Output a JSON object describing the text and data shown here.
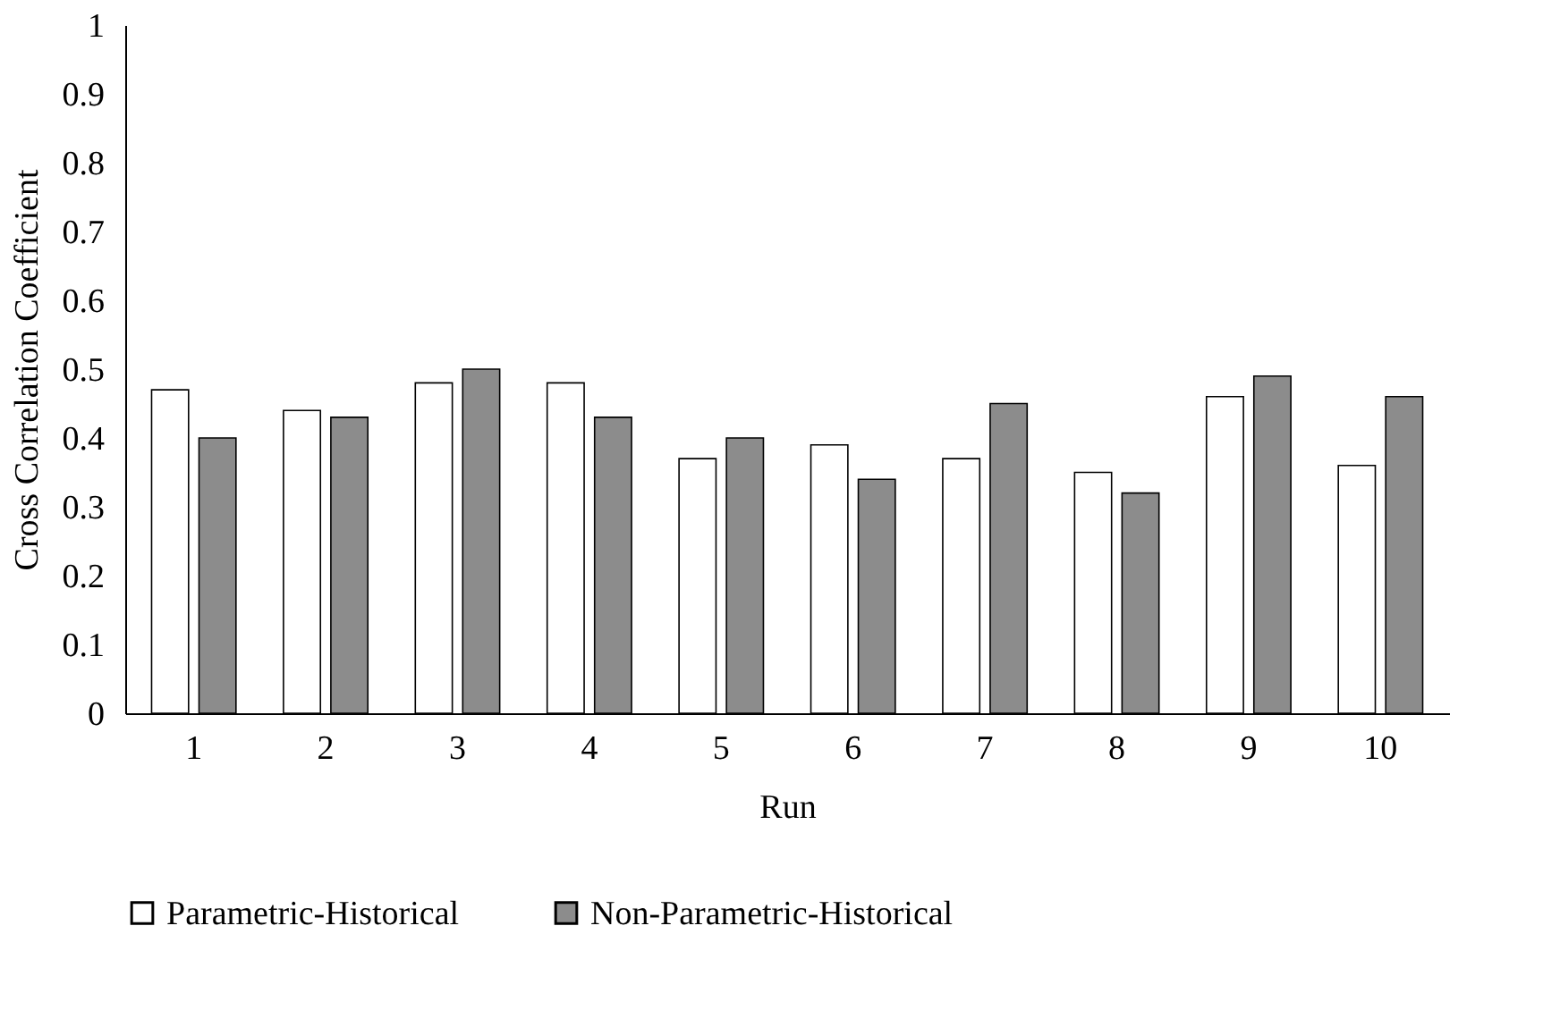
{
  "chart_data": {
    "type": "bar",
    "xlabel": "Run",
    "ylabel": "Cross Correlation Coefficient",
    "categories": [
      "1",
      "2",
      "3",
      "4",
      "5",
      "6",
      "7",
      "8",
      "9",
      "10"
    ],
    "series": [
      {
        "name": "Parametric-Historical",
        "color": "#ffffff",
        "values": [
          0.47,
          0.44,
          0.48,
          0.48,
          0.37,
          0.39,
          0.37,
          0.35,
          0.46,
          0.36
        ]
      },
      {
        "name": "Non-Parametric-Historical",
        "color": "#8c8c8c",
        "values": [
          0.4,
          0.43,
          0.5,
          0.43,
          0.4,
          0.34,
          0.45,
          0.32,
          0.49,
          0.46
        ]
      }
    ],
    "ylim": [
      0,
      1
    ],
    "yticks": [
      0,
      0.1,
      0.2,
      0.3,
      0.4,
      0.5,
      0.6,
      0.7,
      0.8,
      0.9,
      1
    ],
    "grid": false,
    "legend": "bottom"
  }
}
